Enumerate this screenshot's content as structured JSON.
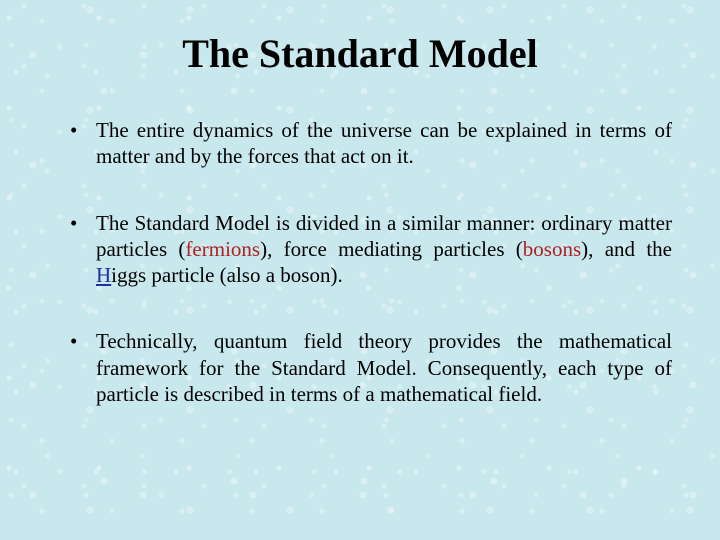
{
  "title": "The Standard Model",
  "colors": {
    "background": "#c8e8ed",
    "text": "#000000",
    "term_red": "#b02020",
    "letter_link": "#2030a0"
  },
  "typography": {
    "title_fontsize_pt": 32,
    "body_fontsize_pt": 18,
    "font_family": "Times New Roman"
  },
  "bullets": [
    {
      "prefix": "The entire dynamics of the universe can be explained in terms of matter and by the forces that act on it.",
      "terms": []
    },
    {
      "prefix": "The Standard Model is divided in a similar manner: ordinary matter particles (",
      "term1": "fermions",
      "mid1": "), force mediating particles (",
      "term2": "bosons",
      "mid2": "), and the ",
      "linkletter": "H",
      "tail": "iggs particle (also a boson)."
    },
    {
      "prefix": "Technically, quantum field theory provides the mathematical framework for the Standard Model. Consequently, each type of particle is described in terms of a mathematical field.",
      "terms": []
    }
  ]
}
